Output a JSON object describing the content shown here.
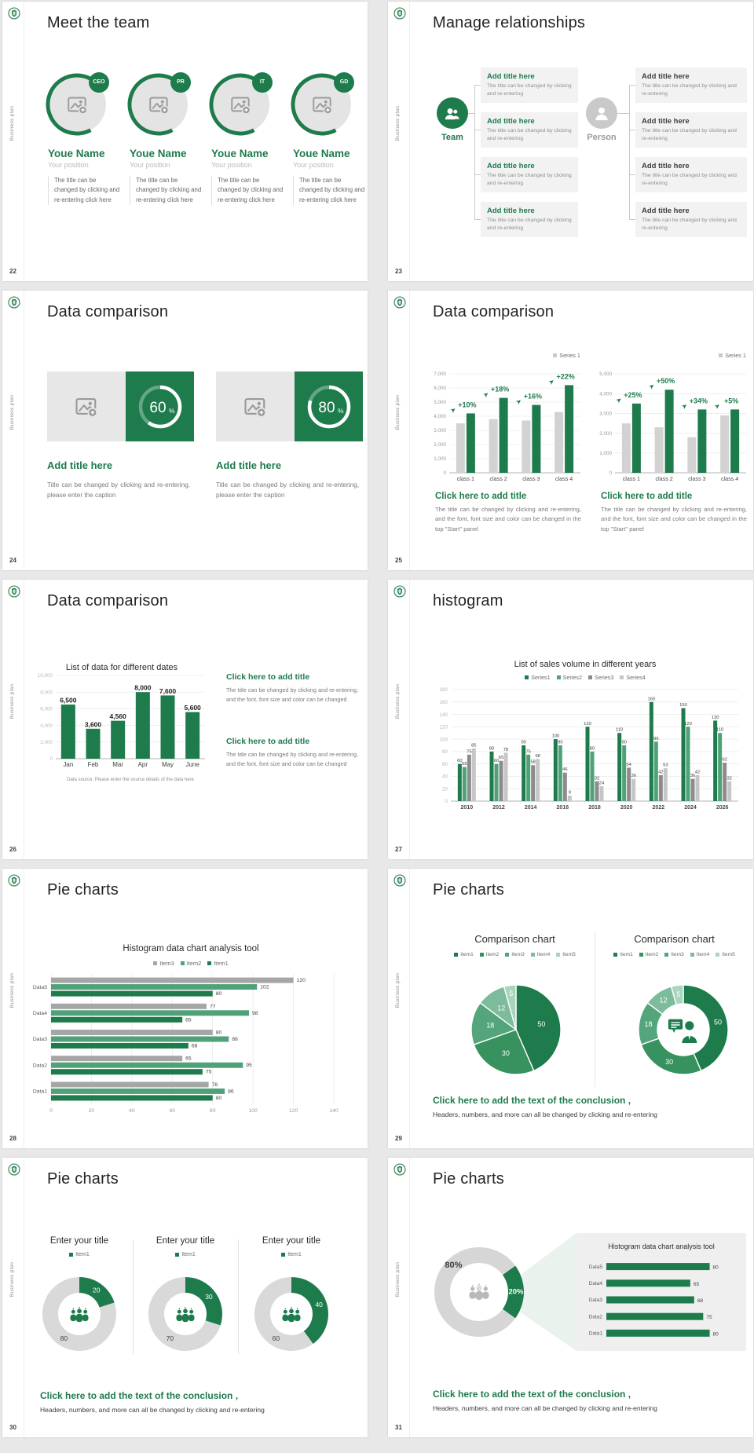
{
  "page": {
    "background": "#e8e8e8"
  },
  "common": {
    "vertical_label": "Business plan"
  },
  "colors": {
    "primary": "#1e7b4c",
    "green2": "#4fa178",
    "grey_bar": "#d2d2d2",
    "series3_grey": "#8c8c8c",
    "series4_grey": "#c6c6c6",
    "item3_grey": "#a6a6a6",
    "donut_grey": "#d9d9d9",
    "legend_grey": "#c9c9c9",
    "pie_ramp": [
      "#1e7b4c",
      "#38925f",
      "#55a57c",
      "#7cbb9b",
      "#a9d4bd"
    ]
  },
  "slides": [
    {
      "number": "22",
      "title": "Meet the team",
      "type": "team",
      "badges": [
        "CEO",
        "PR",
        "IT",
        "GD"
      ],
      "member_name": "Youe Name",
      "member_position": "Your position",
      "member_text": "The title can be changed by clicking and re-entering click here"
    },
    {
      "number": "23",
      "title": "Manage relationships",
      "type": "relationships",
      "team_label": "Team",
      "person_label": "Person",
      "box_title": "Add title here",
      "box_text": "The title can be changed by clicking and re-entering",
      "left_box_count": 4,
      "right_box_count": 4
    },
    {
      "number": "24",
      "title": "Data comparison",
      "type": "gauges",
      "cards": [
        {
          "percent": "60",
          "title": "Add title here",
          "text": "Title can be changed by clicking and re-entering, please enter the caption"
        },
        {
          "percent": "80",
          "title": "Add title here",
          "text": "Title can be changed by clicking and re-entering, please enter the caption"
        }
      ]
    },
    {
      "number": "25",
      "title": "Data comparison",
      "type": "dual-bars",
      "charts": [
        {
          "type": "bar",
          "legend": "Series 1",
          "ylim": [
            0,
            7000
          ],
          "ystep": 1000,
          "categories": [
            "class 1",
            "class 2",
            "class 3",
            "class 4"
          ],
          "series": [
            {
              "name": "base",
              "values": [
                3500,
                3800,
                3700,
                4300
              ]
            },
            {
              "name": "growth",
              "values": [
                4200,
                5300,
                4800,
                6200
              ]
            }
          ],
          "growth_labels": [
            "+10%",
            "+18%",
            "+16%",
            "+22%"
          ]
        },
        {
          "type": "bar",
          "legend": "Series 1",
          "ylim": [
            0,
            5000
          ],
          "ystep": 1000,
          "categories": [
            "class 1",
            "class 2",
            "class 3",
            "class 4"
          ],
          "series": [
            {
              "name": "base",
              "values": [
                2500,
                2300,
                1800,
                2900
              ]
            },
            {
              "name": "growth",
              "values": [
                3500,
                4200,
                3200,
                3200
              ]
            }
          ],
          "growth_labels": [
            "+25%",
            "+50%",
            "+34%",
            "+5%"
          ]
        }
      ],
      "blocks": [
        {
          "title": "Click here to add title",
          "text": "The title can be changed by clicking and re-entering, and the font, font size and color can be changed in the top \"Start\" panel"
        },
        {
          "title": "Click here to add title",
          "text": "The title can be changed by clicking and re-entering, and the font, font size and color can be changed in the top \"Start\" panel"
        }
      ]
    },
    {
      "number": "26",
      "title": "Data comparison",
      "type": "bar-single",
      "chart": {
        "type": "bar",
        "title": "List of data for different dates",
        "ylim": [
          0,
          10000
        ],
        "ystep": 2000,
        "categories": [
          "Jan",
          "Feb",
          "Mar",
          "Apr",
          "May",
          "June"
        ],
        "values": [
          6500,
          3600,
          4560,
          8000,
          7600,
          5600
        ],
        "value_labels": [
          "6,500",
          "3,600",
          "4,560",
          "8,000",
          "7,600",
          "5,600"
        ],
        "caption": "Data source: Please enter the source details of the data here"
      },
      "blocks": [
        {
          "title": "Click here to add title",
          "text": "The title can be changed by clicking and re-entering, and the font, font size and color can be changed"
        },
        {
          "title": "Click here to add title",
          "text": "The title can be changed by clicking and re-entering, and the font, font size and color can be changed"
        }
      ]
    },
    {
      "number": "27",
      "title": "histogram",
      "type": "grouped-bars",
      "chart": {
        "type": "bar",
        "title": "List of sales volume in different years",
        "ylim": [
          0,
          180
        ],
        "ystep": 20,
        "categories": [
          "2010",
          "2012",
          "2014",
          "2016",
          "2018",
          "2020",
          "2022",
          "2024",
          "2026"
        ],
        "series": [
          {
            "name": "Series1",
            "values": [
              60,
              80,
              90,
              100,
              120,
              110,
              160,
              150,
              130
            ]
          },
          {
            "name": "Series2",
            "values": [
              55,
              60,
              75,
              90,
              80,
              90,
              96,
              120,
              110
            ]
          },
          {
            "name": "Series3",
            "values": [
              75,
              65,
              58,
              46,
              32,
              54,
              42,
              36,
              62
            ]
          },
          {
            "name": "Series4",
            "values": [
              85,
              78,
              68,
              9,
              24,
              36,
              53,
              42,
              32
            ]
          }
        ]
      }
    },
    {
      "number": "28",
      "title": "Pie charts",
      "type": "hbars",
      "chart": {
        "type": "bar",
        "title": "Histogram data chart analysis tool",
        "xlim": [
          0,
          140
        ],
        "xstep": 20,
        "categories": [
          "Data5",
          "Data4",
          "Data3",
          "Data2",
          "Data1"
        ],
        "series": [
          {
            "name": "Item3",
            "values": [
              120,
              77,
              80,
              65,
              78
            ]
          },
          {
            "name": "Item2",
            "values": [
              102,
              98,
              88,
              95,
              86
            ]
          },
          {
            "name": "Item1",
            "values": [
              80,
              65,
              68,
              75,
              80
            ]
          }
        ]
      }
    },
    {
      "number": "29",
      "title": "Pie charts",
      "type": "pies",
      "charts": [
        {
          "type": "pie",
          "title": "Comparison chart",
          "legend": [
            "Item1",
            "Item2",
            "Item3",
            "Item4",
            "Item5"
          ],
          "values": [
            50,
            30,
            18,
            12,
            5
          ],
          "donut": false
        },
        {
          "type": "pie",
          "title": "Comparison chart",
          "legend": [
            "Item1",
            "Item2",
            "Item3",
            "Item4",
            "Item5"
          ],
          "values": [
            50,
            30,
            18,
            12,
            5
          ],
          "donut": true
        }
      ],
      "conclusion_title": "Click here to add the text of the conclusion ,",
      "conclusion_text": "Headers, numbers, and more can all be changed by clicking and re-entering"
    },
    {
      "number": "30",
      "title": "Pie charts",
      "type": "donuts",
      "charts": [
        {
          "type": "pie",
          "title": "Enter your title",
          "legend": [
            "Item1"
          ],
          "green": 20,
          "grey": 80
        },
        {
          "type": "pie",
          "title": "Enter your title",
          "legend": [
            "Item1"
          ],
          "green": 30,
          "grey": 70
        },
        {
          "type": "pie",
          "title": "Enter your title",
          "legend": [
            "Item1"
          ],
          "green": 40,
          "grey": 60
        }
      ],
      "conclusion_title": "Click here to add the text of the conclusion ,",
      "conclusion_text": "Headers, numbers, and more can all be changed by clicking and re-entering"
    },
    {
      "number": "31",
      "title": "Pie charts",
      "type": "donut-panel",
      "donut": {
        "green": 20,
        "grey": 80,
        "green_label": "20%",
        "grey_label": "80%"
      },
      "panel": {
        "title": "Histogram data chart analysis tool",
        "categories": [
          "Data5",
          "Data4",
          "Data3",
          "Data2",
          "Data1"
        ],
        "values": [
          80,
          65,
          68,
          75,
          80
        ],
        "xlim": [
          0,
          90
        ]
      },
      "conclusion_title": "Click here to add the text of the conclusion ,",
      "conclusion_text": "Headers, numbers, and more can all be changed by clicking and re-entering"
    }
  ]
}
